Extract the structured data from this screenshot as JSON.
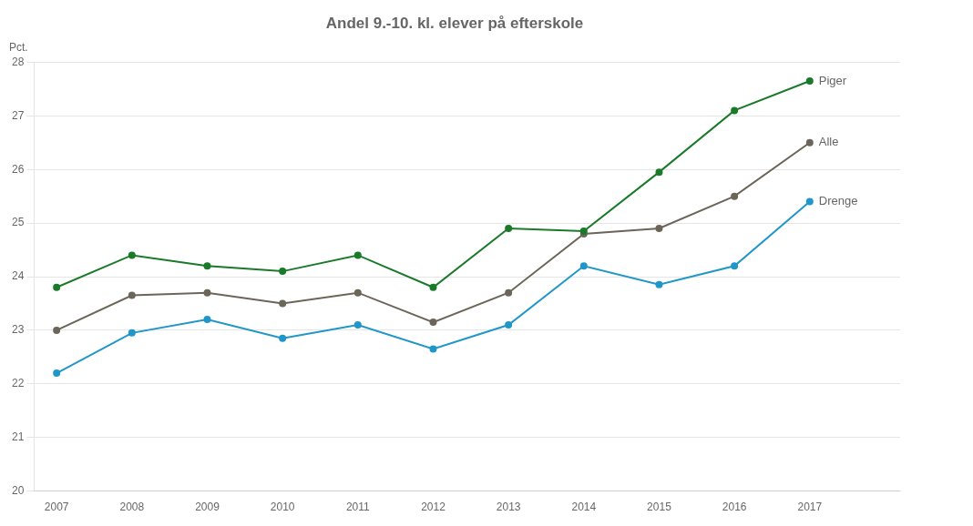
{
  "chart_data": {
    "type": "line",
    "title": "Andel 9.-10. kl. elever på efterskole",
    "ylabel": "Pct.",
    "x": [
      2007,
      2008,
      2009,
      2010,
      2011,
      2012,
      2013,
      2014,
      2015,
      2016,
      2017
    ],
    "series": [
      {
        "name": "Piger",
        "color": "#1a7a2a",
        "values": [
          23.8,
          24.4,
          24.2,
          24.1,
          24.4,
          23.8,
          24.9,
          24.85,
          25.95,
          27.1,
          27.65
        ]
      },
      {
        "name": "Alle",
        "color": "#6b6659",
        "values": [
          23.0,
          23.65,
          23.7,
          23.5,
          23.7,
          23.15,
          23.7,
          24.8,
          24.9,
          25.5,
          26.5
        ]
      },
      {
        "name": "Drenge",
        "color": "#2196c8",
        "values": [
          22.2,
          22.95,
          23.2,
          22.85,
          23.1,
          22.65,
          23.1,
          24.2,
          23.85,
          24.2,
          25.4
        ]
      }
    ],
    "xlim": [
      2006.7,
      2018.2
    ],
    "xticks": [
      2007,
      2008,
      2009,
      2010,
      2011,
      2012,
      2013,
      2014,
      2015,
      2016,
      2017
    ],
    "ylim": [
      20,
      28
    ],
    "yticks": [
      20,
      21,
      22,
      23,
      24,
      25,
      26,
      27,
      28
    ],
    "grid": true
  }
}
